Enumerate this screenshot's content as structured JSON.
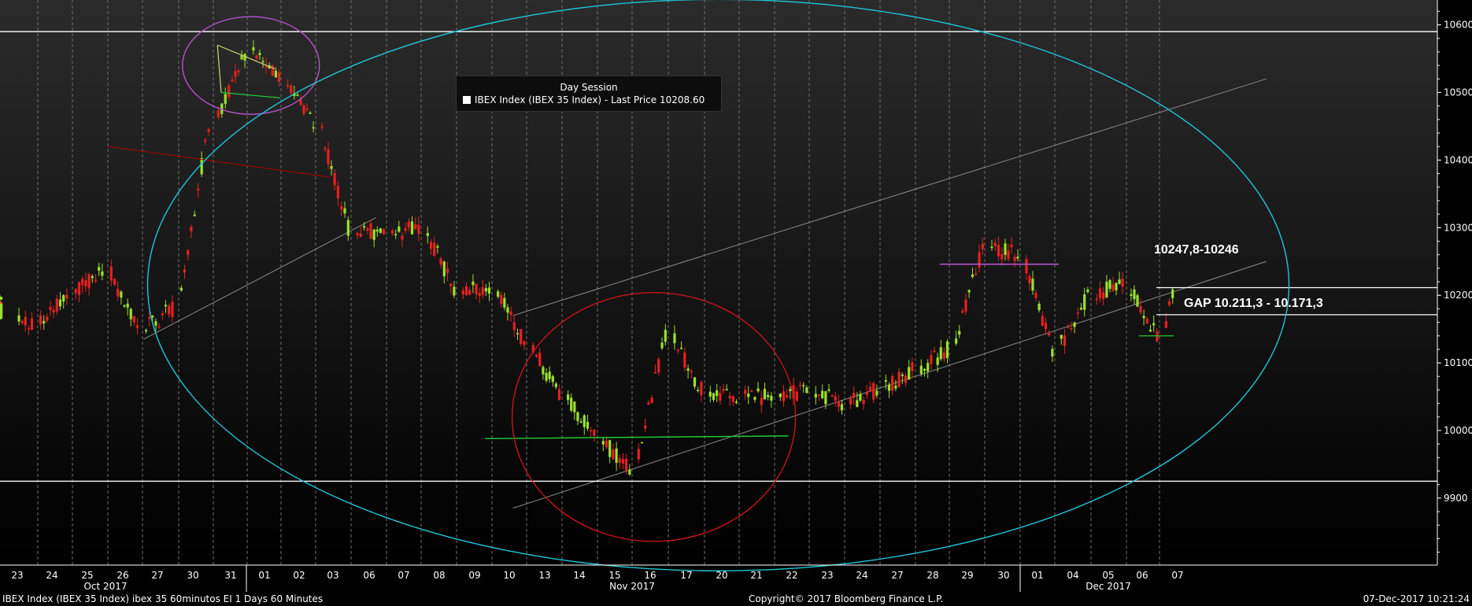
{
  "chart_data": {
    "type": "candlestick",
    "legend": {
      "title": "Day Session",
      "series_label": "IBEX Index (IBEX 35 Index) - Last Price 10208.60",
      "swatch_color": "#ffffff"
    },
    "y_axis": {
      "ylim": [
        9820,
        10645
      ],
      "ticks": [
        9900,
        10000,
        10100,
        10200,
        10300,
        10400,
        10500,
        10600
      ],
      "position": "right"
    },
    "x_axis": {
      "days": [
        "23",
        "24",
        "25",
        "26",
        "27",
        "30",
        "31",
        "01",
        "02",
        "03",
        "06",
        "07",
        "08",
        "09",
        "10",
        "13",
        "14",
        "15",
        "16",
        "17",
        "20",
        "21",
        "22",
        "23",
        "24",
        "27",
        "28",
        "29",
        "30",
        "01",
        "04",
        "05",
        "06",
        "07"
      ],
      "months": [
        {
          "label": "Oct 2017",
          "first_day": 0
        },
        {
          "label": "Nov 2017",
          "first_day": 7
        },
        {
          "label": "Dec 2017",
          "first_day": 29
        }
      ]
    },
    "colors": {
      "up": "#9be22d",
      "down": "#e8201e",
      "grid": "#6e6e6e",
      "axis": "#ffffff"
    },
    "candles_approx_daily_close": [
      10160,
      10200,
      10240,
      10150,
      10180,
      10450,
      10560,
      10520,
      10460,
      10300,
      10290,
      10300,
      10210,
      10210,
      10130,
      10050,
      9990,
      9940,
      10140,
      10060,
      10050,
      10050,
      10060,
      10040,
      10060,
      10090,
      10120,
      10270,
      10260,
      10120,
      10200,
      10220,
      10140,
      10208.6
    ],
    "annotations": [
      {
        "type": "hline",
        "value": 10590,
        "color": "#ffffff"
      },
      {
        "type": "hline",
        "value": 9925,
        "color": "#ffffff"
      },
      {
        "type": "hline",
        "value": 10211.3,
        "color": "#ffffff",
        "from_day": 32.4
      },
      {
        "type": "hline",
        "value": 10171.3,
        "color": "#ffffff",
        "from_day": 32.4
      },
      {
        "type": "text",
        "text": "10247,8-10246"
      },
      {
        "type": "text",
        "text": "GAP 10.211,3 - 10.171,3"
      }
    ]
  },
  "footer": {
    "left": "IBEX Index (IBEX 35 Index) ibex 35 60minutos EI 1 Days 60 Minutes",
    "center": "Copyright© 2017 Bloomberg Finance L.P.",
    "right": "07-Dec-2017 10:21:24"
  }
}
